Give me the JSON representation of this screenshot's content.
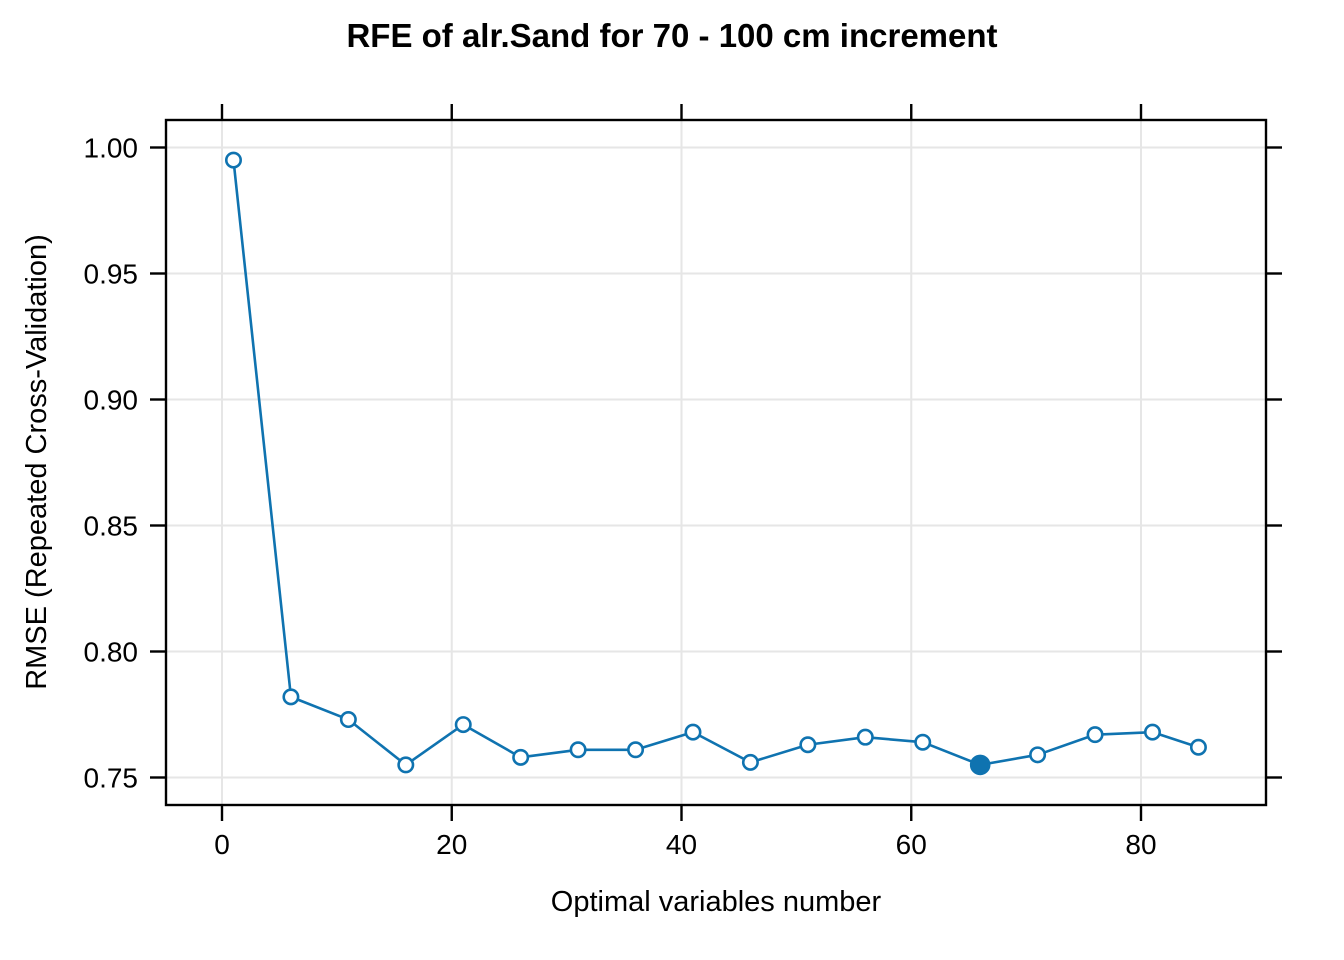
{
  "chart_data": {
    "type": "line",
    "title": "RFE of alr.Sand for 70 - 100 cm increment",
    "xlabel": "Optimal variables number",
    "ylabel": "RMSE (Repeated Cross-Validation)",
    "x": [
      1,
      6,
      11,
      16,
      21,
      26,
      31,
      36,
      41,
      46,
      51,
      56,
      61,
      66,
      71,
      76,
      81,
      85
    ],
    "series": [
      {
        "name": "RMSE",
        "values": [
          0.995,
          0.782,
          0.773,
          0.755,
          0.771,
          0.758,
          0.761,
          0.761,
          0.768,
          0.756,
          0.763,
          0.766,
          0.764,
          0.755,
          0.759,
          0.767,
          0.768,
          0.762
        ]
      }
    ],
    "optimal_point": {
      "x": 66,
      "y": 0.755
    },
    "x_tick_values": [
      0,
      20,
      40,
      60,
      80
    ],
    "x_tick_labels": [
      "0",
      "20",
      "40",
      "60",
      "80"
    ],
    "y_tick_values": [
      0.75,
      0.8,
      0.85,
      0.9,
      0.95,
      1.0
    ],
    "y_tick_labels": [
      "0.75",
      "0.80",
      "0.85",
      "0.90",
      "0.95",
      "1.00"
    ],
    "xlim": [
      -4.9,
      91.0
    ],
    "ylim": [
      0.739,
      1.011
    ],
    "grid": true,
    "legend_position": "none",
    "colors": {
      "line": "#0F73B0",
      "point_stroke": "#0F73B0",
      "point_fill": "#FFFFFF",
      "optimal_fill": "#0F73B0",
      "grid": "#E6E6E6",
      "axis": "#000000",
      "background": "#FFFFFF"
    }
  }
}
